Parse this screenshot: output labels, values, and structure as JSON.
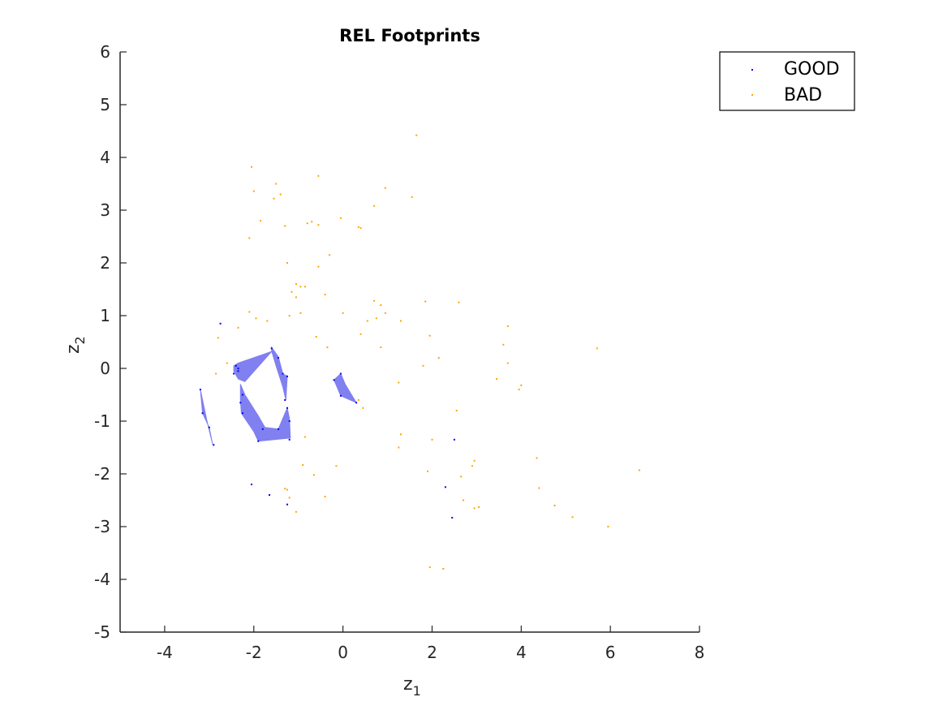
{
  "chart_data": {
    "type": "scatter",
    "title": "REL Footprints",
    "xlabel": {
      "base": "z",
      "sub": "1"
    },
    "ylabel": {
      "base": "z",
      "sub": "2"
    },
    "xlim": [
      -5,
      8
    ],
    "ylim": [
      -5,
      6
    ],
    "xticks": [
      -4,
      -2,
      0,
      2,
      4,
      6,
      8
    ],
    "yticks": [
      -5,
      -4,
      -3,
      -2,
      -1,
      0,
      1,
      2,
      3,
      4,
      5,
      6
    ],
    "grid": false,
    "legend_position": "top-right",
    "colors": {
      "good": "#0000ff",
      "bad": "#ffa500",
      "footprint_fill": "#8080f0",
      "axis": "#262626"
    },
    "series": [
      {
        "name": "GOOD",
        "points": [
          [
            -2.75,
            0.85
          ],
          [
            -2.4,
            0.05
          ],
          [
            -2.35,
            -0.05
          ],
          [
            -2.45,
            -0.1
          ],
          [
            -2.35,
            0.0
          ],
          [
            -1.6,
            0.38
          ],
          [
            -1.45,
            0.2
          ],
          [
            -1.35,
            -0.1
          ],
          [
            -1.25,
            -0.15
          ],
          [
            -1.3,
            -0.6
          ],
          [
            -2.25,
            -0.5
          ],
          [
            -2.3,
            -0.65
          ],
          [
            -2.25,
            -0.85
          ],
          [
            -1.8,
            -1.15
          ],
          [
            -1.2,
            -1.35
          ],
          [
            -1.25,
            -0.75
          ],
          [
            -1.2,
            -1.0
          ],
          [
            -1.9,
            -1.38
          ],
          [
            -1.45,
            -1.15
          ],
          [
            -0.2,
            -0.22
          ],
          [
            -0.05,
            -0.1
          ],
          [
            0.3,
            -0.65
          ],
          [
            -0.05,
            -0.52
          ],
          [
            -3.2,
            -0.4
          ],
          [
            -3.15,
            -0.85
          ],
          [
            -3.0,
            -1.12
          ],
          [
            -2.9,
            -1.45
          ],
          [
            -2.05,
            -2.2
          ],
          [
            -1.65,
            -2.4
          ],
          [
            -1.25,
            -2.58
          ],
          [
            2.5,
            -1.35
          ],
          [
            2.3,
            -2.25
          ],
          [
            2.45,
            -2.83
          ]
        ]
      },
      {
        "name": "BAD",
        "points": [
          [
            1.65,
            4.42
          ],
          [
            -2.05,
            3.82
          ],
          [
            -0.55,
            3.65
          ],
          [
            -1.5,
            3.5
          ],
          [
            -2.0,
            3.36
          ],
          [
            0.95,
            3.42
          ],
          [
            -1.4,
            3.3
          ],
          [
            -1.55,
            3.22
          ],
          [
            1.55,
            3.25
          ],
          [
            0.7,
            3.08
          ],
          [
            -1.85,
            2.8
          ],
          [
            -0.8,
            2.75
          ],
          [
            -0.7,
            2.78
          ],
          [
            -1.3,
            2.7
          ],
          [
            -0.55,
            2.72
          ],
          [
            0.35,
            2.68
          ],
          [
            -0.05,
            2.85
          ],
          [
            0.4,
            2.66
          ],
          [
            -2.1,
            2.47
          ],
          [
            -0.3,
            2.15
          ],
          [
            -1.25,
            2.0
          ],
          [
            -0.55,
            1.93
          ],
          [
            -1.05,
            1.6
          ],
          [
            -0.95,
            1.55
          ],
          [
            -0.85,
            1.55
          ],
          [
            -1.15,
            1.45
          ],
          [
            -1.05,
            1.35
          ],
          [
            -0.4,
            1.4
          ],
          [
            -0.95,
            1.05
          ],
          [
            -1.2,
            1.0
          ],
          [
            0.0,
            1.05
          ],
          [
            0.7,
            1.28
          ],
          [
            0.85,
            1.2
          ],
          [
            0.95,
            1.05
          ],
          [
            1.85,
            1.27
          ],
          [
            2.6,
            1.25
          ],
          [
            0.55,
            0.9
          ],
          [
            0.75,
            0.95
          ],
          [
            1.3,
            0.9
          ],
          [
            -2.1,
            1.07
          ],
          [
            -1.95,
            0.95
          ],
          [
            -1.7,
            0.9
          ],
          [
            -2.35,
            0.77
          ],
          [
            -2.8,
            0.58
          ],
          [
            -0.6,
            0.6
          ],
          [
            0.4,
            0.65
          ],
          [
            0.85,
            0.4
          ],
          [
            1.95,
            0.62
          ],
          [
            3.7,
            0.8
          ],
          [
            3.6,
            0.45
          ],
          [
            -0.35,
            0.4
          ],
          [
            2.15,
            0.2
          ],
          [
            1.8,
            0.05
          ],
          [
            3.7,
            0.1
          ],
          [
            5.7,
            0.38
          ],
          [
            -2.6,
            0.1
          ],
          [
            -2.85,
            -0.1
          ],
          [
            1.25,
            -0.27
          ],
          [
            3.45,
            -0.2
          ],
          [
            4.0,
            -0.32
          ],
          [
            3.95,
            -0.4
          ],
          [
            0.35,
            -0.6
          ],
          [
            0.45,
            -0.75
          ],
          [
            2.55,
            -0.8
          ],
          [
            -0.85,
            -1.3
          ],
          [
            1.3,
            -1.25
          ],
          [
            1.25,
            -1.5
          ],
          [
            2.0,
            -1.35
          ],
          [
            2.95,
            -1.75
          ],
          [
            4.35,
            -1.7
          ],
          [
            -0.9,
            -1.83
          ],
          [
            -0.15,
            -1.85
          ],
          [
            2.9,
            -1.85
          ],
          [
            6.65,
            -1.93
          ],
          [
            1.9,
            -1.95
          ],
          [
            2.65,
            -2.05
          ],
          [
            -0.65,
            -2.02
          ],
          [
            -1.3,
            -2.28
          ],
          [
            -1.25,
            -2.3
          ],
          [
            4.4,
            -2.27
          ],
          [
            -1.2,
            -2.45
          ],
          [
            -0.4,
            -2.43
          ],
          [
            2.7,
            -2.5
          ],
          [
            4.75,
            -2.6
          ],
          [
            2.95,
            -2.65
          ],
          [
            3.05,
            -2.63
          ],
          [
            -1.05,
            -2.72
          ],
          [
            5.15,
            -2.82
          ],
          [
            5.95,
            -3.0
          ],
          [
            1.95,
            -3.77
          ],
          [
            2.25,
            -3.8
          ]
        ]
      }
    ],
    "footprints": [
      [
        [
          -2.45,
          -0.05
        ],
        [
          -2.45,
          0.05
        ],
        [
          -2.35,
          0.1
        ],
        [
          -1.6,
          0.32
        ],
        [
          -2.2,
          -0.25
        ],
        [
          -2.35,
          -0.2
        ]
      ],
      [
        [
          -1.6,
          0.4
        ],
        [
          -1.45,
          0.22
        ],
        [
          -1.35,
          -0.1
        ],
        [
          -1.25,
          -0.15
        ],
        [
          -1.28,
          -0.6
        ],
        [
          -1.35,
          -0.35
        ],
        [
          -1.5,
          0.05
        ],
        [
          -1.6,
          0.33
        ]
      ],
      [
        [
          -2.3,
          -0.3
        ],
        [
          -2.2,
          -0.5
        ],
        [
          -1.9,
          -0.9
        ],
        [
          -1.75,
          -1.12
        ],
        [
          -1.45,
          -1.15
        ],
        [
          -1.25,
          -0.75
        ],
        [
          -1.2,
          -0.95
        ],
        [
          -1.18,
          -1.32
        ],
        [
          -1.9,
          -1.38
        ],
        [
          -2.0,
          -1.2
        ],
        [
          -2.28,
          -0.85
        ],
        [
          -2.3,
          -0.6
        ]
      ],
      [
        [
          -0.2,
          -0.22
        ],
        [
          -0.05,
          -0.1
        ],
        [
          0.05,
          -0.3
        ],
        [
          0.3,
          -0.65
        ],
        [
          -0.05,
          -0.52
        ]
      ],
      [
        [
          -3.2,
          -0.4
        ],
        [
          -3.15,
          -0.85
        ],
        [
          -3.0,
          -1.12
        ],
        [
          -2.92,
          -1.45
        ],
        [
          -3.05,
          -1.0
        ]
      ]
    ]
  }
}
